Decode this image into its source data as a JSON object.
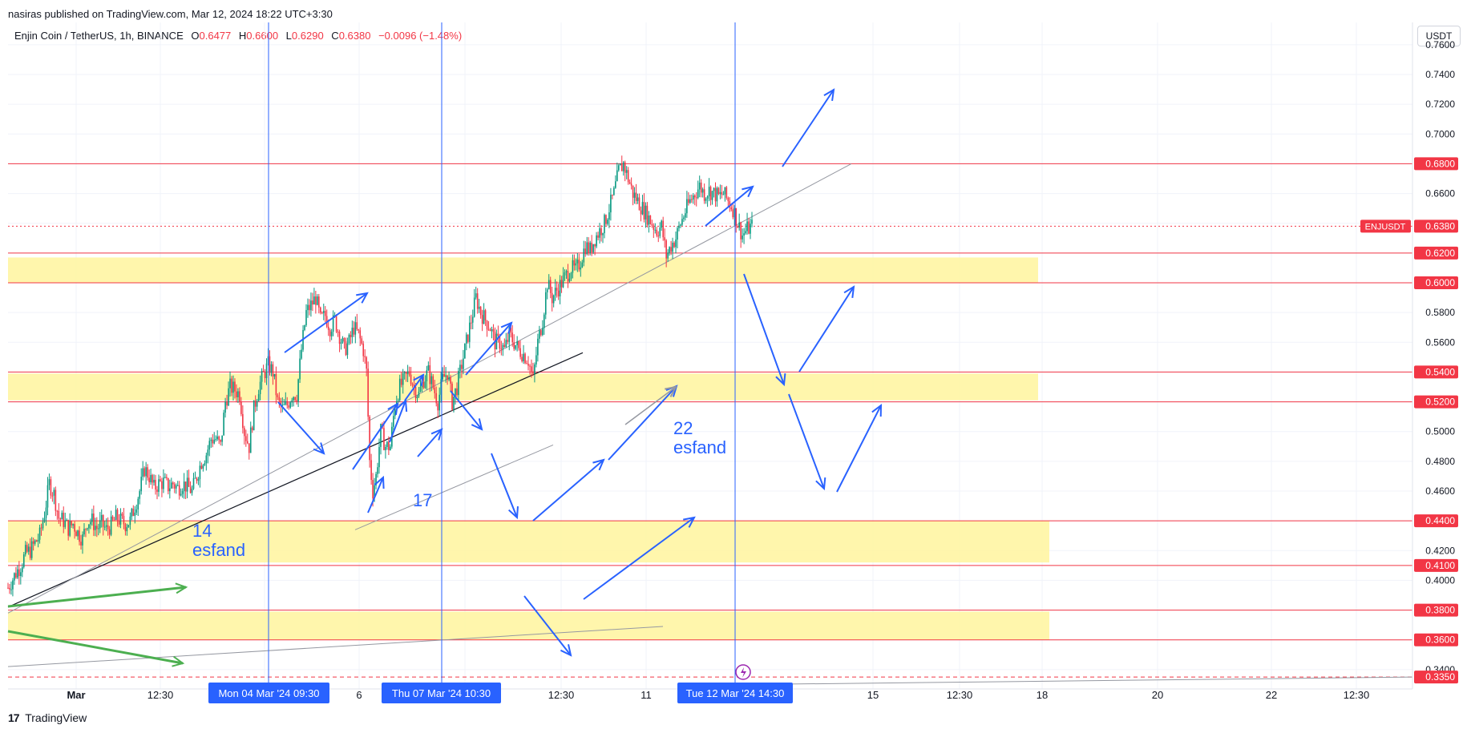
{
  "header": {
    "published": "nasiras published on TradingView.com, Mar 12, 2024 18:22 UTC+3:30",
    "symbol": "Enjin Coin / TetherUS, 1h, BINANCE",
    "o_label": "O",
    "o_value": "0.6477",
    "h_label": "H",
    "h_value": "0.6600",
    "l_label": "L",
    "l_value": "0.6290",
    "c_label": "C",
    "c_value": "0.6380",
    "change": "−0.0096 (−1.48%)",
    "currency": "USDT"
  },
  "footer": {
    "logo_glyph": "17",
    "brand": "TradingView"
  },
  "colors": {
    "up": "#089981",
    "down": "#f23645",
    "level": "#f23645",
    "zone": "#fff59d",
    "vline": "#2962ff",
    "arrow": "#2962ff",
    "green_arrow": "#4caf50",
    "trend_dark": "#131722",
    "trend_gray": "#9598a1"
  },
  "chart_data": {
    "type": "candlestick",
    "symbol": "ENJUSDT",
    "interval": "1h",
    "ylim": [
      0.327,
      0.775
    ],
    "y_ticks": [
      "0.7600",
      "0.7400",
      "0.7200",
      "0.7000",
      "0.6600",
      "0.5800",
      "0.5600",
      "0.5000",
      "0.4800",
      "0.4600",
      "0.4200",
      "0.4000",
      "0.3400"
    ],
    "x_ticks": [
      "Mar",
      "12:30",
      "6",
      "12:30",
      "11",
      "15",
      "12:30",
      "18",
      "20",
      "22",
      "12:30"
    ],
    "x_time_labels": [
      "Mon 04 Mar '24   09:30",
      "Thu 07 Mar '24   10:30",
      "Tue 12 Mar '24   14:30"
    ],
    "price_levels": [
      {
        "value": 0.68,
        "label": "0.6800"
      },
      {
        "value": 0.62,
        "label": "0.6200"
      },
      {
        "value": 0.6,
        "label": "0.6000"
      },
      {
        "value": 0.54,
        "label": "0.5400"
      },
      {
        "value": 0.52,
        "label": "0.5200"
      },
      {
        "value": 0.44,
        "label": "0.4400"
      },
      {
        "value": 0.41,
        "label": "0.4100"
      },
      {
        "value": 0.38,
        "label": "0.3800"
      },
      {
        "value": 0.36,
        "label": "0.3600"
      },
      {
        "value": 0.335,
        "label": "0.3350"
      }
    ],
    "last_price": {
      "value": 0.638,
      "label": "0.6380",
      "ticker": "ENJUSDT"
    },
    "zones": [
      {
        "from": 0.6,
        "to": 0.617
      },
      {
        "from": 0.521,
        "to": 0.539
      },
      {
        "from": 0.412,
        "to": 0.44
      },
      {
        "from": 0.36,
        "to": 0.379
      }
    ],
    "annotations": [
      {
        "text": "14",
        "sub": "esfand"
      },
      {
        "text": "17",
        "sub": ""
      },
      {
        "text": "22",
        "sub": "esfand"
      }
    ],
    "path_points": [
      [
        0,
        0.395
      ],
      [
        5,
        0.405
      ],
      [
        8,
        0.41
      ],
      [
        11,
        0.418
      ],
      [
        14,
        0.42
      ],
      [
        17,
        0.425
      ],
      [
        20,
        0.43
      ],
      [
        23,
        0.445
      ],
      [
        26,
        0.465
      ],
      [
        29,
        0.458
      ],
      [
        32,
        0.442
      ],
      [
        35,
        0.44
      ],
      [
        38,
        0.435
      ],
      [
        41,
        0.438
      ],
      [
        44,
        0.432
      ],
      [
        47,
        0.428
      ],
      [
        50,
        0.44
      ],
      [
        53,
        0.44
      ],
      [
        56,
        0.435
      ],
      [
        59,
        0.438
      ],
      [
        62,
        0.434
      ],
      [
        65,
        0.437
      ],
      [
        68,
        0.442
      ],
      [
        71,
        0.44
      ],
      [
        74,
        0.438
      ],
      [
        77,
        0.44
      ],
      [
        80,
        0.45
      ],
      [
        83,
        0.46
      ],
      [
        86,
        0.475
      ],
      [
        89,
        0.47
      ],
      [
        92,
        0.462
      ],
      [
        95,
        0.465
      ],
      [
        98,
        0.466
      ],
      [
        101,
        0.463
      ],
      [
        104,
        0.465
      ],
      [
        107,
        0.462
      ],
      [
        110,
        0.465
      ],
      [
        113,
        0.463
      ],
      [
        116,
        0.46
      ],
      [
        119,
        0.47
      ],
      [
        122,
        0.48
      ],
      [
        125,
        0.485
      ],
      [
        128,
        0.495
      ],
      [
        131,
        0.495
      ],
      [
        134,
        0.49
      ],
      [
        137,
        0.52
      ],
      [
        140,
        0.53
      ],
      [
        143,
        0.528
      ],
      [
        146,
        0.525
      ],
      [
        149,
        0.5
      ],
      [
        152,
        0.49
      ],
      [
        155,
        0.515
      ],
      [
        158,
        0.53
      ],
      [
        161,
        0.538
      ],
      [
        164,
        0.545
      ],
      [
        167,
        0.54
      ],
      [
        170,
        0.52
      ],
      [
        173,
        0.515
      ],
      [
        176,
        0.518
      ],
      [
        179,
        0.525
      ],
      [
        182,
        0.525
      ],
      [
        185,
        0.555
      ],
      [
        188,
        0.58
      ],
      [
        191,
        0.585
      ],
      [
        194,
        0.59
      ],
      [
        197,
        0.575
      ],
      [
        200,
        0.578
      ],
      [
        203,
        0.57
      ],
      [
        206,
        0.575
      ],
      [
        209,
        0.565
      ],
      [
        212,
        0.555
      ],
      [
        215,
        0.56
      ],
      [
        218,
        0.57
      ],
      [
        221,
        0.565
      ],
      [
        224,
        0.555
      ],
      [
        226,
        0.54
      ],
      [
        228,
        0.48
      ],
      [
        230,
        0.46
      ],
      [
        232,
        0.47
      ],
      [
        235,
        0.5
      ],
      [
        238,
        0.49
      ],
      [
        241,
        0.49
      ],
      [
        244,
        0.52
      ],
      [
        247,
        0.53
      ],
      [
        250,
        0.535
      ],
      [
        253,
        0.54
      ],
      [
        256,
        0.53
      ],
      [
        259,
        0.525
      ],
      [
        262,
        0.535
      ],
      [
        265,
        0.54
      ],
      [
        268,
        0.53
      ],
      [
        271,
        0.52
      ],
      [
        274,
        0.535
      ],
      [
        277,
        0.54
      ],
      [
        280,
        0.52
      ],
      [
        283,
        0.53
      ],
      [
        286,
        0.545
      ],
      [
        289,
        0.56
      ],
      [
        292,
        0.575
      ],
      [
        295,
        0.59
      ],
      [
        298,
        0.58
      ],
      [
        301,
        0.575
      ],
      [
        304,
        0.57
      ],
      [
        307,
        0.56
      ],
      [
        310,
        0.56
      ],
      [
        313,
        0.555
      ],
      [
        316,
        0.565
      ],
      [
        319,
        0.56
      ],
      [
        322,
        0.555
      ],
      [
        325,
        0.552
      ],
      [
        328,
        0.548
      ],
      [
        331,
        0.535
      ],
      [
        334,
        0.56
      ],
      [
        337,
        0.575
      ],
      [
        340,
        0.6
      ],
      [
        343,
        0.59
      ],
      [
        346,
        0.595
      ],
      [
        349,
        0.6
      ],
      [
        352,
        0.605
      ],
      [
        355,
        0.61
      ],
      [
        358,
        0.608
      ],
      [
        361,
        0.615
      ],
      [
        364,
        0.625
      ],
      [
        367,
        0.622
      ],
      [
        370,
        0.63
      ],
      [
        373,
        0.635
      ],
      [
        376,
        0.64
      ],
      [
        379,
        0.65
      ],
      [
        382,
        0.66
      ],
      [
        385,
        0.675
      ],
      [
        388,
        0.68
      ],
      [
        391,
        0.67
      ],
      [
        394,
        0.66
      ],
      [
        397,
        0.655
      ],
      [
        400,
        0.65
      ],
      [
        403,
        0.645
      ],
      [
        406,
        0.64
      ],
      [
        409,
        0.635
      ],
      [
        412,
        0.638
      ],
      [
        415,
        0.618
      ],
      [
        418,
        0.625
      ],
      [
        421,
        0.63
      ],
      [
        424,
        0.64
      ],
      [
        427,
        0.648
      ],
      [
        430,
        0.655
      ],
      [
        433,
        0.66
      ],
      [
        436,
        0.665
      ],
      [
        439,
        0.66
      ],
      [
        442,
        0.662
      ],
      [
        445,
        0.66
      ],
      [
        448,
        0.658
      ],
      [
        451,
        0.66
      ],
      [
        454,
        0.655
      ],
      [
        457,
        0.65
      ],
      [
        460,
        0.64
      ],
      [
        463,
        0.632
      ],
      [
        466,
        0.636
      ],
      [
        469,
        0.638
      ]
    ]
  }
}
